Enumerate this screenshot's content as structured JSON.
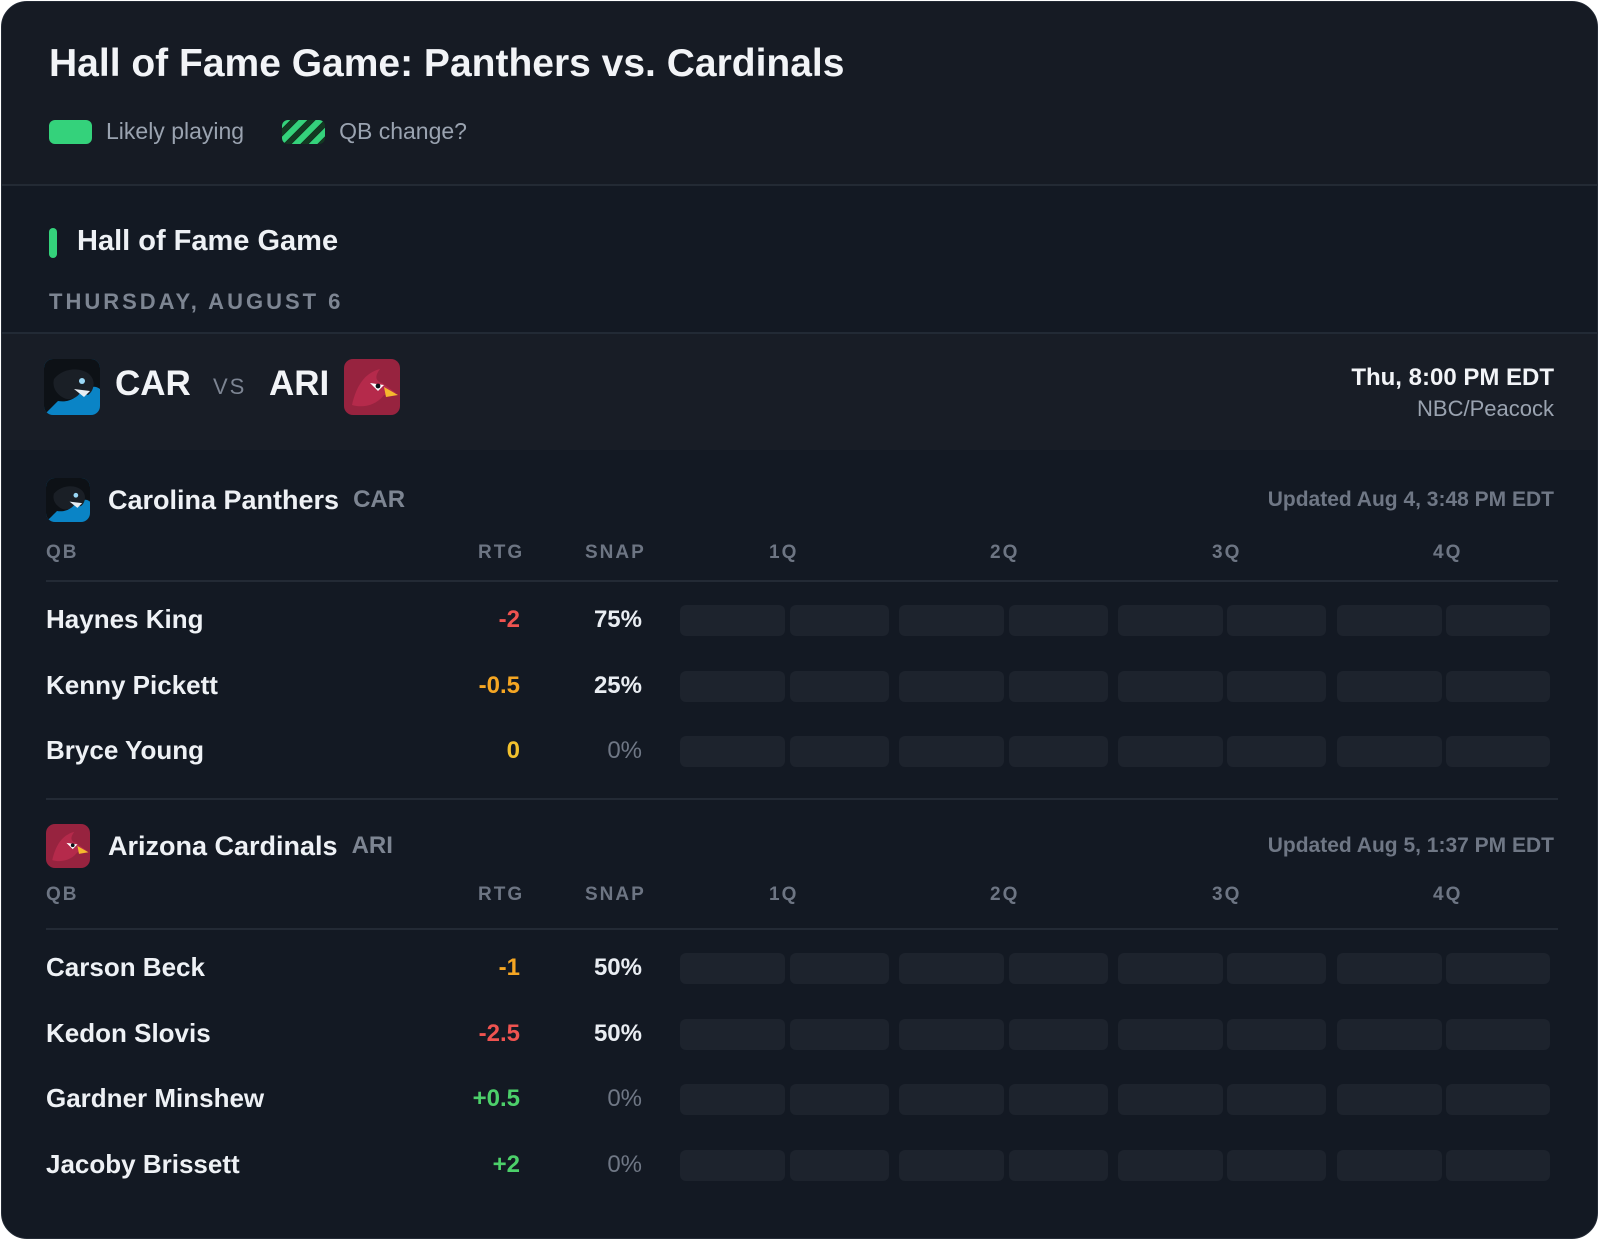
{
  "header": {
    "title": "Hall of Fame Game: Panthers vs. Cardinals",
    "legend": [
      {
        "label": "Likely playing",
        "style": "solid"
      },
      {
        "label": "QB change?",
        "style": "hatched"
      }
    ]
  },
  "section": {
    "title": "Hall of Fame Game",
    "date": "THURSDAY, AUGUST 6"
  },
  "matchup": {
    "away": "CAR",
    "vs": "VS",
    "home": "ARI",
    "time": "Thu, 8:00 PM EDT",
    "network": "NBC/Peacock"
  },
  "columns": {
    "qb": "QB",
    "rtg": "RTG",
    "snap": "SNAP",
    "quarters": [
      "1Q",
      "2Q",
      "3Q",
      "4Q"
    ]
  },
  "teams": [
    {
      "name": "Carolina Panthers",
      "abbr": "CAR",
      "updated": "Updated Aug 4, 3:48 PM EDT",
      "qbs": [
        {
          "name": "Haynes King",
          "rtg": "-2",
          "rtg_color": "#ef5350",
          "snap": "75%",
          "segments": [
            "off",
            "off",
            "on",
            "on",
            "on",
            "on",
            "on",
            "on"
          ]
        },
        {
          "name": "Kenny Pickett",
          "rtg": "-0.5",
          "rtg_color": "#f5a623",
          "snap": "25%",
          "segments": [
            "on",
            "on",
            "off",
            "off",
            "off",
            "off",
            "off",
            "off"
          ]
        },
        {
          "name": "Bryce Young",
          "rtg": "0",
          "rtg_color": "#f2c12e",
          "snap": "0%",
          "segments": [
            "off",
            "off",
            "off",
            "off",
            "off",
            "off",
            "off",
            "off"
          ]
        }
      ]
    },
    {
      "name": "Arizona Cardinals",
      "abbr": "ARI",
      "updated": "Updated Aug 5, 1:37 PM EDT",
      "qbs": [
        {
          "name": "Carson Beck",
          "rtg": "-1",
          "rtg_color": "#f5a623",
          "snap": "50%",
          "segments": [
            "on",
            "on",
            "on",
            "on",
            "change",
            "off",
            "off",
            "off"
          ]
        },
        {
          "name": "Kedon Slovis",
          "rtg": "-2.5",
          "rtg_color": "#ef5350",
          "snap": "50%",
          "segments": [
            "off",
            "off",
            "off",
            "off",
            "change",
            "on",
            "on",
            "on"
          ]
        },
        {
          "name": "Gardner Minshew",
          "rtg": "+0.5",
          "rtg_color": "#4cd06a",
          "snap": "0%",
          "segments": [
            "off",
            "off",
            "off",
            "off",
            "off",
            "off",
            "off",
            "off"
          ]
        },
        {
          "name": "Jacoby Brissett",
          "rtg": "+2",
          "rtg_color": "#4cd06a",
          "snap": "0%",
          "segments": [
            "off",
            "off",
            "off",
            "off",
            "off",
            "off",
            "off",
            "off"
          ]
        }
      ]
    }
  ],
  "colors": {
    "accent": "#34d27b",
    "background": "#131923",
    "segment_off": "#1d232d"
  },
  "icons": {
    "car_logo": "panther-logo-icon",
    "ari_logo": "cardinal-logo-icon"
  }
}
